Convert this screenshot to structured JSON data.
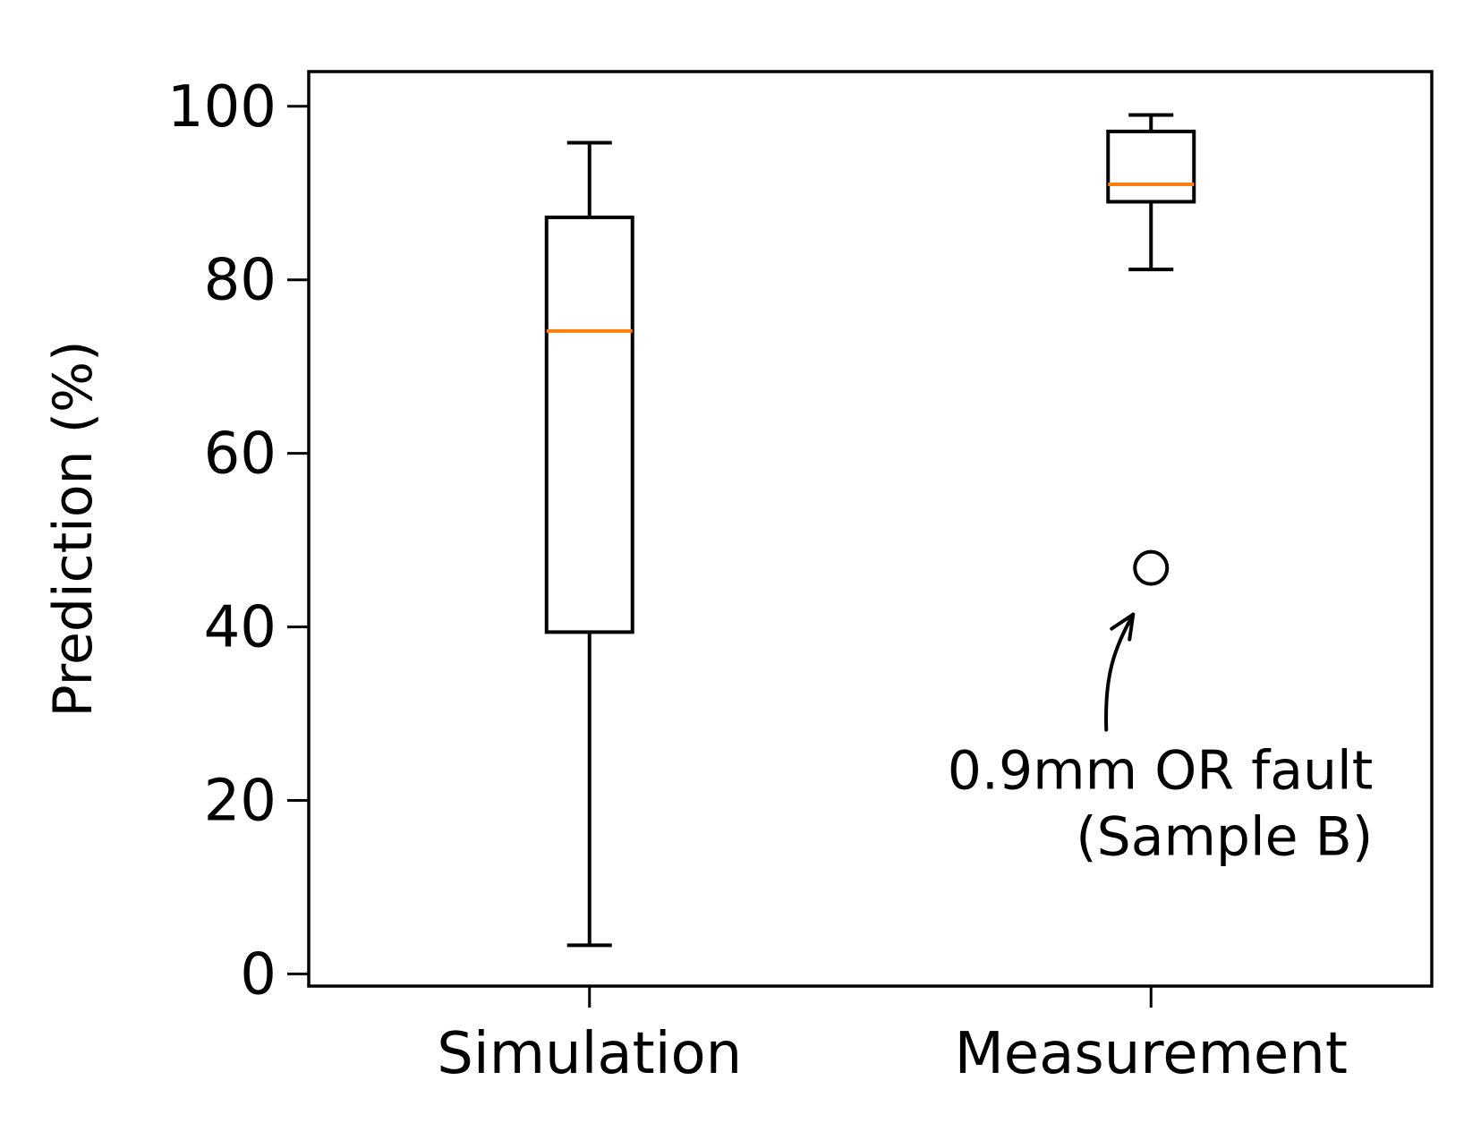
{
  "chart_data": {
    "type": "box",
    "ylabel": "Prediction (%)",
    "xlabel": "",
    "ylim": [
      -1.4,
      104
    ],
    "yticks": [
      0,
      20,
      40,
      60,
      80,
      100
    ],
    "grid": false,
    "categories": [
      "Simulation",
      "Measurement"
    ],
    "boxes": [
      {
        "category": "Simulation",
        "whisker_low": 3.3,
        "q1": 39.4,
        "median": 74.1,
        "q3": 87.2,
        "whisker_high": 95.8,
        "outliers": []
      },
      {
        "category": "Measurement",
        "whisker_low": 81.2,
        "q1": 89.0,
        "median": 91.0,
        "q3": 97.1,
        "whisker_high": 99.0,
        "outliers": [
          46.8
        ]
      }
    ],
    "annotation": {
      "text_lines": [
        "0.9mm OR fault",
        "(Sample B)"
      ],
      "target_category": "Measurement",
      "target_value": 46.8
    },
    "colors": {
      "median": "#ff7f0e",
      "box": "#000000"
    }
  }
}
